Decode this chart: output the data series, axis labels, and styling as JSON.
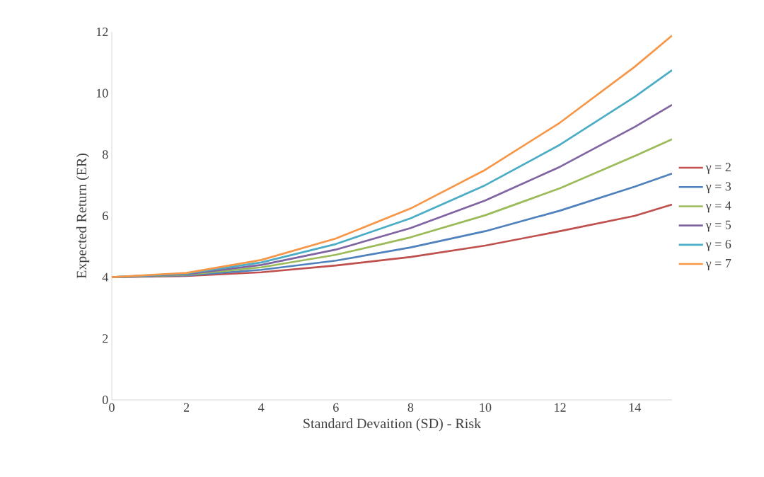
{
  "chart_data": {
    "type": "line",
    "xlabel": "Standard Devaition (SD) - Risk",
    "ylabel": "Expected Return (ER)",
    "x": [
      0,
      2,
      4,
      6,
      8,
      10,
      12,
      14,
      15
    ],
    "series": [
      {
        "name": "γ = 2",
        "color": "#c0504d",
        "values": [
          4,
          4.04,
          4.16,
          4.38,
          4.66,
          5.03,
          5.5,
          6.0,
          6.37
        ]
      },
      {
        "name": "γ = 3",
        "color": "#4f81bd",
        "values": [
          4,
          4.06,
          4.24,
          4.54,
          4.97,
          5.5,
          6.17,
          6.95,
          7.38
        ]
      },
      {
        "name": "γ = 4",
        "color": "#9bbb59",
        "values": [
          4,
          4.08,
          4.32,
          4.73,
          5.3,
          6.02,
          6.9,
          7.95,
          8.5
        ]
      },
      {
        "name": "γ = 5",
        "color": "#8064a2",
        "values": [
          4,
          4.1,
          4.4,
          4.9,
          5.6,
          6.5,
          7.6,
          8.9,
          9.62
        ]
      },
      {
        "name": "γ = 6",
        "color": "#4bacc6",
        "values": [
          4,
          4.12,
          4.48,
          5.08,
          5.92,
          7.0,
          8.32,
          9.88,
          10.75
        ]
      },
      {
        "name": "γ = 7",
        "color": "#f79646",
        "values": [
          4,
          4.14,
          4.56,
          5.26,
          6.24,
          7.5,
          9.04,
          10.86,
          11.88
        ]
      }
    ],
    "xlim": [
      0,
      15
    ],
    "xticks": [
      0,
      2,
      4,
      6,
      8,
      10,
      12,
      14
    ],
    "ylim": [
      0,
      12
    ],
    "yticks": [
      0,
      2,
      4,
      6,
      8,
      10,
      12
    ],
    "grid": false,
    "legend": "right",
    "marker": "none",
    "line_style": "solid"
  }
}
